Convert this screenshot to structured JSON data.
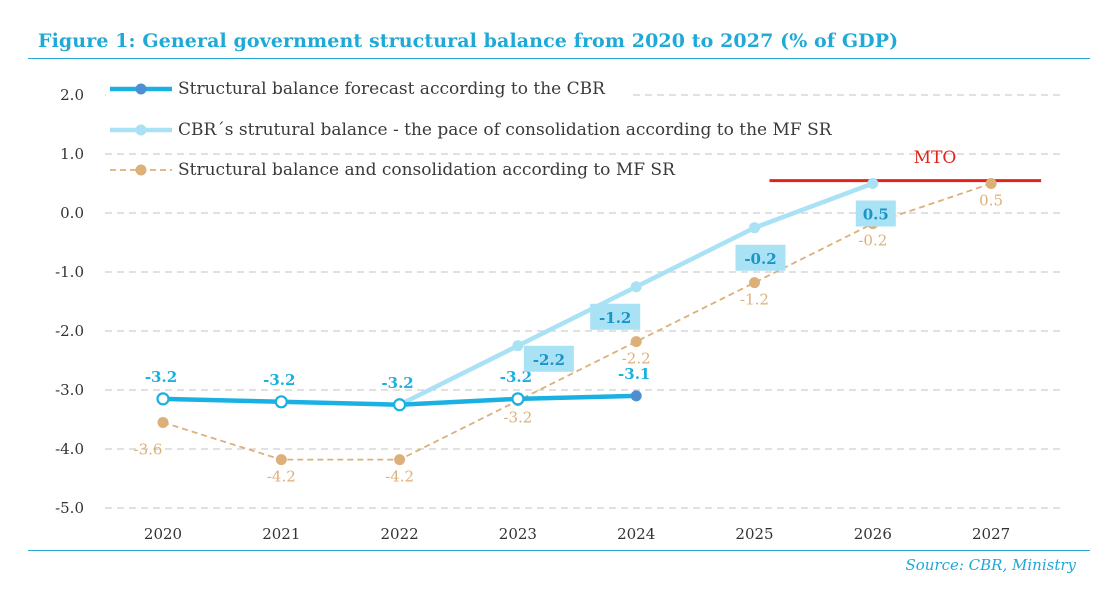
{
  "title": "Figure 1: General government structural balance from 2020 to 2027 (% of GDP)",
  "source": "Source: CBR, Ministry",
  "chart_data": {
    "type": "line",
    "categories": [
      "2020",
      "2021",
      "2022",
      "2023",
      "2024",
      "2025",
      "2026",
      "2027"
    ],
    "y_ticks": [
      "2.0",
      "1.0",
      "0.0",
      "-1.0",
      "-2.0",
      "-3.0",
      "-4.0",
      "-5.0"
    ],
    "ylim": [
      -5,
      2
    ],
    "grid": true,
    "legend_position": "top-left",
    "series": [
      {
        "name": "Structural balance forecast according to the CBR",
        "color": "#1ab1e2",
        "values": [
          -3.15,
          -3.2,
          -3.25,
          -3.15,
          -3.1,
          null,
          null,
          null
        ],
        "labels": [
          "-3.2",
          "-3.2",
          "-3.2",
          "-3.2",
          "-3.1",
          null,
          null,
          null
        ]
      },
      {
        "name": "CBR´s strutural balance - the pace of consolidation according to the MF SR",
        "color": "#a9e1f5",
        "values": [
          null,
          null,
          -3.25,
          -2.25,
          -1.25,
          -0.25,
          0.5,
          null
        ],
        "labels": [
          null,
          null,
          null,
          "-2.2",
          "-1.2",
          "-0.2",
          "0.5",
          null
        ]
      },
      {
        "name": "Structural balance and consolidation according to MF SR",
        "color": "#ddb07a",
        "values": [
          -3.55,
          -4.18,
          -4.18,
          -3.18,
          -2.18,
          -1.18,
          -0.18,
          0.5
        ],
        "labels": [
          "-3.6",
          "-4.2",
          "-4.2",
          "-3.2",
          "-2.2",
          "-1.2",
          "-0.2",
          "0.5"
        ]
      }
    ],
    "reference_line": {
      "label": "MTO",
      "value": 0.6,
      "from": "2025",
      "to": "2027",
      "color": "#e1241b"
    }
  }
}
